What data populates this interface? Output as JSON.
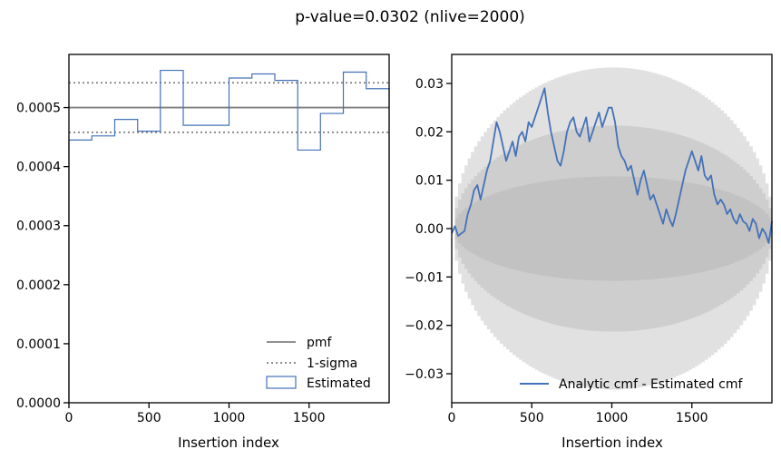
{
  "suptitle": "p-value=0.0302 (nlive=2000)",
  "colors": {
    "estimated": "#4472b8",
    "pmf": "#808080",
    "sigma": "#808080",
    "band": "#b0b0b0",
    "axis": "#000000"
  },
  "chart_data": [
    {
      "type": "step-histogram",
      "xlabel": "Insertion index",
      "ylabel": "",
      "xlim": [
        0,
        2000
      ],
      "ylim": [
        0,
        0.00059
      ],
      "x_ticks": [
        0,
        500,
        1000,
        1500
      ],
      "x_tick_labels": [
        "0",
        "500",
        "1000",
        "1500"
      ],
      "y_ticks": [
        0,
        0.0001,
        0.0002,
        0.0003,
        0.0004,
        0.0005
      ],
      "y_tick_labels": [
        "0.0000",
        "0.0001",
        "0.0002",
        "0.0003",
        "0.0004",
        "0.0005"
      ],
      "pmf": 0.0005,
      "sigma_upper": 0.000542,
      "sigma_lower": 0.000458,
      "bin_edges": [
        0,
        143,
        286,
        429,
        571,
        714,
        857,
        1000,
        1143,
        1286,
        1429,
        1571,
        1714,
        1857,
        2000
      ],
      "estimated": [
        0.000445,
        0.000452,
        0.00048,
        0.00046,
        0.000563,
        0.00047,
        0.00047,
        0.00055,
        0.000557,
        0.000546,
        0.000428,
        0.00049,
        0.00056,
        0.000532
      ],
      "legend": {
        "location": "lower right",
        "entries": [
          {
            "label": "pmf",
            "style": "solid"
          },
          {
            "label": "1-sigma",
            "style": "dotted"
          },
          {
            "label": "Estimated",
            "style": "patch"
          }
        ]
      }
    },
    {
      "type": "line",
      "xlabel": "Insertion index",
      "ylabel": "",
      "xlim": [
        0,
        2000
      ],
      "ylim": [
        -0.036,
        0.036
      ],
      "x_ticks": [
        0,
        500,
        1000,
        1500
      ],
      "x_tick_labels": [
        "0",
        "500",
        "1000",
        "1500"
      ],
      "y_ticks": [
        -0.03,
        -0.02,
        -0.01,
        0.0,
        0.01,
        0.02,
        0.03
      ],
      "y_tick_labels": [
        "−0.03",
        "−0.02",
        "−0.01",
        "0.00",
        "0.01",
        "0.02",
        "0.03"
      ],
      "bands": [
        {
          "name": "3-sigma",
          "half_width": 0.0333
        },
        {
          "name": "2-sigma",
          "half_width": 0.0213
        },
        {
          "name": "1-sigma",
          "half_width": 0.0108
        }
      ],
      "series": [
        {
          "name": "Analytic cmf - Estimated cmf",
          "x": [
            0,
            20,
            40,
            60,
            80,
            100,
            120,
            140,
            160,
            180,
            200,
            220,
            240,
            260,
            280,
            300,
            320,
            340,
            360,
            380,
            400,
            420,
            440,
            460,
            480,
            500,
            520,
            540,
            560,
            580,
            600,
            620,
            640,
            660,
            680,
            700,
            720,
            740,
            760,
            780,
            800,
            820,
            840,
            860,
            880,
            900,
            920,
            940,
            960,
            980,
            1000,
            1020,
            1040,
            1060,
            1080,
            1100,
            1120,
            1140,
            1160,
            1180,
            1200,
            1220,
            1240,
            1260,
            1280,
            1300,
            1320,
            1340,
            1360,
            1380,
            1400,
            1420,
            1440,
            1460,
            1480,
            1500,
            1520,
            1540,
            1560,
            1580,
            1600,
            1620,
            1640,
            1660,
            1680,
            1700,
            1720,
            1740,
            1760,
            1780,
            1800,
            1820,
            1840,
            1860,
            1880,
            1900,
            1920,
            1940,
            1960,
            1980,
            2000
          ],
          "values": [
            -0.001,
            0.0005,
            -0.0015,
            -0.001,
            -0.0005,
            0.003,
            0.005,
            0.008,
            0.009,
            0.006,
            0.009,
            0.012,
            0.014,
            0.018,
            0.022,
            0.02,
            0.017,
            0.014,
            0.016,
            0.018,
            0.015,
            0.019,
            0.02,
            0.018,
            0.022,
            0.021,
            0.023,
            0.025,
            0.027,
            0.029,
            0.024,
            0.02,
            0.017,
            0.014,
            0.013,
            0.016,
            0.02,
            0.022,
            0.023,
            0.02,
            0.019,
            0.021,
            0.023,
            0.018,
            0.02,
            0.022,
            0.024,
            0.021,
            0.023,
            0.025,
            0.025,
            0.022,
            0.017,
            0.015,
            0.014,
            0.012,
            0.013,
            0.01,
            0.007,
            0.01,
            0.012,
            0.009,
            0.006,
            0.007,
            0.005,
            0.003,
            0.001,
            0.004,
            0.002,
            0.0005,
            0.003,
            0.006,
            0.009,
            0.012,
            0.014,
            0.016,
            0.014,
            0.012,
            0.015,
            0.011,
            0.01,
            0.011,
            0.007,
            0.005,
            0.006,
            0.005,
            0.003,
            0.004,
            0.002,
            0.001,
            0.003,
            0.0015,
            0.001,
            -0.0005,
            0.002,
            0.001,
            -0.002,
            0.0,
            -0.001,
            -0.003,
            0.0015
          ]
        }
      ],
      "legend": {
        "location": "lower right",
        "entries": [
          {
            "label": "Analytic cmf - Estimated cmf",
            "style": "solid"
          }
        ]
      }
    }
  ]
}
